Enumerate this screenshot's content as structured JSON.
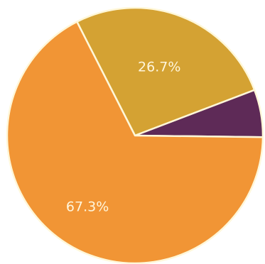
{
  "chart_data": {
    "type": "pie",
    "title": "",
    "legend": "none",
    "slices": [
      {
        "label": "26.7%",
        "value": 26.7,
        "color": "#d4a233"
      },
      {
        "label": "",
        "value": 6.0,
        "color": "#5e2a57"
      },
      {
        "label": "67.3%",
        "value": 67.3,
        "color": "#f19535"
      }
    ],
    "slice_border_color": "#fff7d8"
  }
}
